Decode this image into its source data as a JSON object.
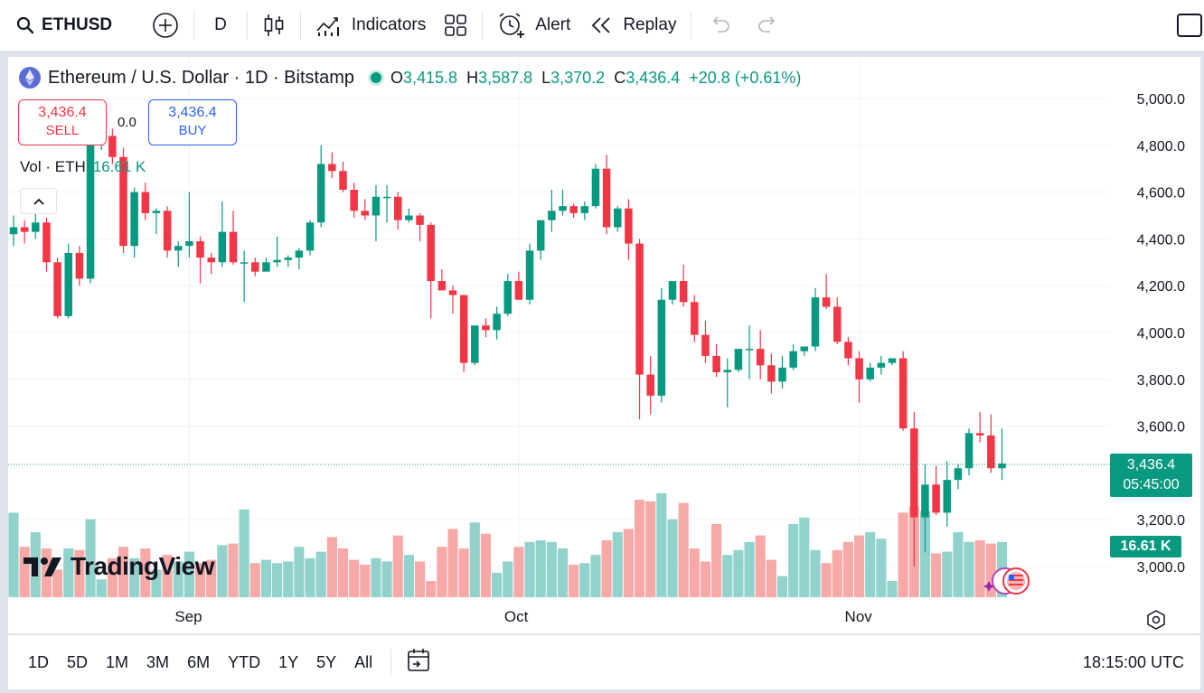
{
  "toolbar": {
    "symbol": "ETHUSD",
    "interval": "D",
    "indicators_label": "Indicators",
    "alert_label": "Alert",
    "replay_label": "Replay"
  },
  "legend": {
    "title": "Ethereum / U.S. Dollar · 1D · Bitstamp",
    "open_label": "O",
    "open": "3,415.8",
    "high_label": "H",
    "high": "3,587.8",
    "low_label": "L",
    "low": "3,370.2",
    "close_label": "C",
    "close": "3,436.4",
    "change": "+20.8 (+0.61%)"
  },
  "trade": {
    "sell_price": "3,436.4",
    "sell_label": "SELL",
    "spread": "0.0",
    "buy_price": "3,436.4",
    "buy_label": "BUY"
  },
  "volume_legend": {
    "label": "Vol · ETH",
    "value": "16.61 K"
  },
  "badges": {
    "last_price": "3,436.4",
    "countdown": "05:45:00",
    "volume": "16.61 K"
  },
  "logo_text": "TradingView",
  "colors": {
    "up": "#089981",
    "down": "#f23645",
    "up_vol": "#92d2cc",
    "down_vol": "#f7a9a7"
  },
  "chart_data": {
    "type": "candlestick",
    "title": "Ethereum / U.S. Dollar · 1D · Bitstamp",
    "y_ticks": [
      "5,000.0",
      "4,800.0",
      "4,600.0",
      "4,400.0",
      "4,200.0",
      "4,000.0",
      "3,800.0",
      "3,600.0",
      "3,200.0",
      "3,000.0"
    ],
    "y_tick_values": [
      5000,
      4800,
      4600,
      4400,
      4200,
      4000,
      3800,
      3600,
      3200,
      3000
    ],
    "y_range": [
      2860,
      5060
    ],
    "x_labels": [
      {
        "label": "Sep",
        "index": 16
      },
      {
        "label": "Oct",
        "index": 46
      },
      {
        "label": "Nov",
        "index": 77
      }
    ],
    "last_price": 3436.4,
    "candles": [
      [
        4420,
        4500,
        4370,
        4450
      ],
      [
        4450,
        4480,
        4380,
        4430
      ],
      [
        4430,
        4520,
        4400,
        4470
      ],
      [
        4470,
        4490,
        4260,
        4300
      ],
      [
        4300,
        4320,
        4060,
        4070
      ],
      [
        4070,
        4380,
        4060,
        4340
      ],
      [
        4340,
        4370,
        4200,
        4230
      ],
      [
        4230,
        4860,
        4210,
        4820
      ],
      [
        4820,
        4880,
        4780,
        4840
      ],
      [
        4840,
        4870,
        4720,
        4750
      ],
      [
        4750,
        4790,
        4340,
        4370
      ],
      [
        4370,
        4620,
        4320,
        4600
      ],
      [
        4600,
        4640,
        4480,
        4510
      ],
      [
        4510,
        4530,
        4420,
        4520
      ],
      [
        4520,
        4540,
        4320,
        4350
      ],
      [
        4350,
        4390,
        4280,
        4370
      ],
      [
        4370,
        4600,
        4320,
        4390
      ],
      [
        4390,
        4410,
        4210,
        4320
      ],
      [
        4320,
        4340,
        4250,
        4300
      ],
      [
        4300,
        4560,
        4280,
        4430
      ],
      [
        4430,
        4520,
        4290,
        4300
      ],
      [
        4300,
        4350,
        4130,
        4300
      ],
      [
        4300,
        4320,
        4240,
        4260
      ],
      [
        4260,
        4320,
        4260,
        4300
      ],
      [
        4300,
        4410,
        4280,
        4310
      ],
      [
        4310,
        4330,
        4280,
        4320
      ],
      [
        4320,
        4360,
        4270,
        4350
      ],
      [
        4350,
        4480,
        4330,
        4470
      ],
      [
        4470,
        4800,
        4450,
        4720
      ],
      [
        4720,
        4770,
        4660,
        4690
      ],
      [
        4690,
        4730,
        4600,
        4610
      ],
      [
        4610,
        4640,
        4490,
        4520
      ],
      [
        4520,
        4570,
        4480,
        4500
      ],
      [
        4500,
        4630,
        4390,
        4580
      ],
      [
        4580,
        4630,
        4470,
        4580
      ],
      [
        4580,
        4600,
        4440,
        4480
      ],
      [
        4480,
        4530,
        4470,
        4500
      ],
      [
        4500,
        4510,
        4390,
        4460
      ],
      [
        4460,
        4470,
        4060,
        4220
      ],
      [
        4220,
        4270,
        4180,
        4180
      ],
      [
        4180,
        4200,
        4080,
        4160
      ],
      [
        4160,
        4160,
        3830,
        3870
      ],
      [
        3870,
        4030,
        3860,
        4030
      ],
      [
        4030,
        4060,
        3980,
        4010
      ],
      [
        4010,
        4110,
        3970,
        4080
      ],
      [
        4080,
        4250,
        4070,
        4220
      ],
      [
        4220,
        4260,
        4140,
        4140
      ],
      [
        4140,
        4380,
        4120,
        4350
      ],
      [
        4350,
        4460,
        4310,
        4480
      ],
      [
        4480,
        4610,
        4430,
        4520
      ],
      [
        4520,
        4610,
        4500,
        4540
      ],
      [
        4540,
        4550,
        4490,
        4510
      ],
      [
        4510,
        4560,
        4480,
        4540
      ],
      [
        4540,
        4720,
        4530,
        4700
      ],
      [
        4700,
        4760,
        4420,
        4450
      ],
      [
        4450,
        4540,
        4430,
        4530
      ],
      [
        4530,
        4570,
        4310,
        4380
      ],
      [
        4380,
        4400,
        3630,
        3820
      ],
      [
        3820,
        3900,
        3650,
        3730
      ],
      [
        3730,
        4190,
        3700,
        4140
      ],
      [
        4140,
        4210,
        4120,
        4220
      ],
      [
        4220,
        4290,
        4110,
        4130
      ],
      [
        4130,
        4160,
        3960,
        3990
      ],
      [
        3990,
        4050,
        3870,
        3900
      ],
      [
        3900,
        3950,
        3810,
        3830
      ],
      [
        3830,
        3890,
        3680,
        3840
      ],
      [
        3840,
        3930,
        3830,
        3930
      ],
      [
        3930,
        4030,
        3800,
        3930
      ],
      [
        3930,
        4010,
        3800,
        3860
      ],
      [
        3860,
        3910,
        3740,
        3790
      ],
      [
        3790,
        3900,
        3760,
        3850
      ],
      [
        3850,
        3950,
        3840,
        3920
      ],
      [
        3920,
        3940,
        3900,
        3940
      ],
      [
        3940,
        4190,
        3920,
        4150
      ],
      [
        4150,
        4250,
        4100,
        4110
      ],
      [
        4110,
        4150,
        3950,
        3960
      ],
      [
        3960,
        3980,
        3860,
        3890
      ],
      [
        3890,
        3920,
        3700,
        3800
      ],
      [
        3800,
        3870,
        3790,
        3850
      ],
      [
        3850,
        3900,
        3820,
        3870
      ],
      [
        3870,
        3890,
        3860,
        3890
      ],
      [
        3890,
        3920,
        3580,
        3590
      ],
      [
        3590,
        3660,
        3000,
        3210
      ],
      [
        3210,
        3440,
        3060,
        3350
      ],
      [
        3350,
        3430,
        3220,
        3230
      ],
      [
        3230,
        3450,
        3170,
        3370
      ],
      [
        3370,
        3440,
        3330,
        3420
      ],
      [
        3420,
        3590,
        3390,
        3570
      ],
      [
        3570,
        3660,
        3530,
        3560
      ],
      [
        3560,
        3650,
        3400,
        3420
      ],
      [
        3420,
        3590,
        3370,
        3440
      ]
    ],
    "volumes": [
      0.52,
      0.31,
      0.4,
      0.3,
      0.17,
      0.3,
      0.29,
      0.48,
      0.11,
      0.24,
      0.31,
      0.24,
      0.3,
      0.17,
      0.26,
      0.22,
      0.28,
      0.21,
      0.23,
      0.32,
      0.33,
      0.54,
      0.21,
      0.23,
      0.21,
      0.22,
      0.31,
      0.24,
      0.28,
      0.37,
      0.3,
      0.23,
      0.2,
      0.24,
      0.22,
      0.38,
      0.26,
      0.22,
      0.1,
      0.31,
      0.42,
      0.3,
      0.46,
      0.39,
      0.15,
      0.22,
      0.31,
      0.34,
      0.35,
      0.34,
      0.3,
      0.2,
      0.21,
      0.26,
      0.35,
      0.4,
      0.42,
      0.6,
      0.59,
      0.64,
      0.48,
      0.58,
      0.3,
      0.22,
      0.45,
      0.26,
      0.29,
      0.34,
      0.38,
      0.23,
      0.13,
      0.45,
      0.49,
      0.29,
      0.21,
      0.29,
      0.34,
      0.38,
      0.4,
      0.36,
      0.1,
      0.52,
      0.56,
      0.53,
      0.27,
      0.28,
      0.4,
      0.34,
      0.35,
      0.33,
      0.34
    ]
  }
}
